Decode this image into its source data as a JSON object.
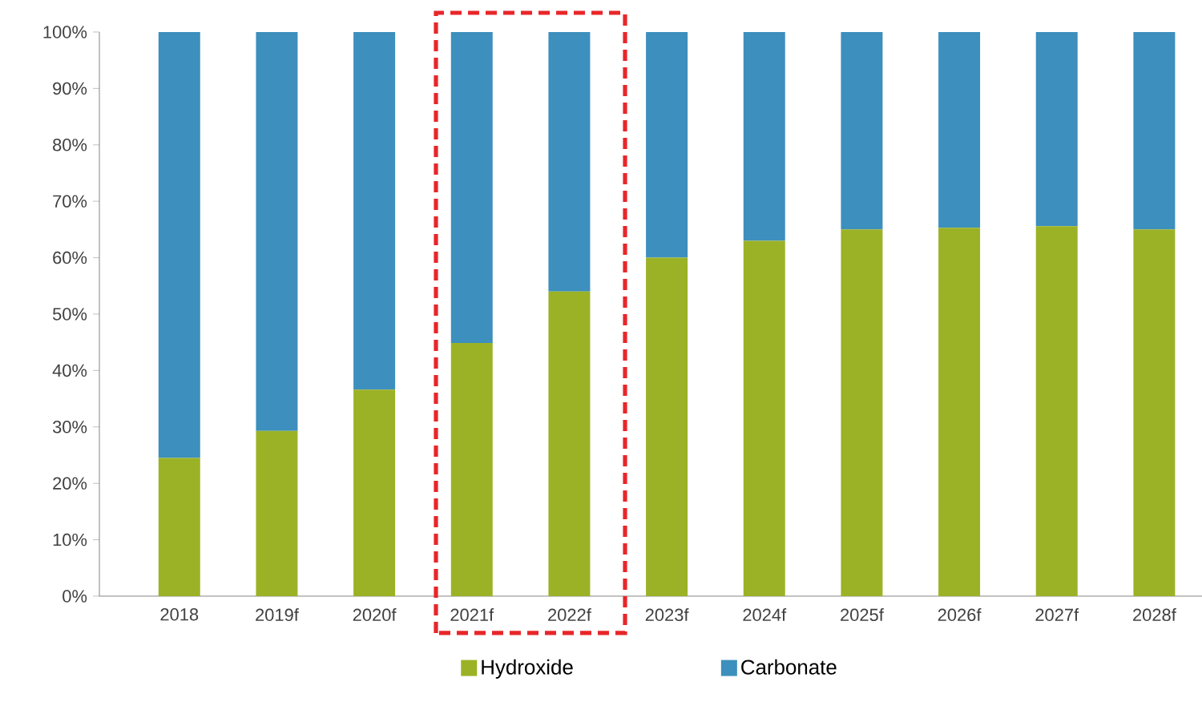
{
  "chart_data": {
    "type": "bar",
    "stacked": true,
    "legend": "bottom",
    "categories": [
      "2018",
      "2019f",
      "2020f",
      "2021f",
      "2022f",
      "2023f",
      "2024f",
      "2025f",
      "2026f",
      "2027f",
      "2028f"
    ],
    "series": [
      {
        "name": "Hydroxide",
        "color": "#9bb227",
        "values": [
          24.5,
          29.3,
          36.6,
          44.9,
          54,
          60,
          63,
          65,
          65.3,
          65.6,
          65
        ]
      },
      {
        "name": "Carbonate",
        "color": "#3d8fbd",
        "values": [
          75.5,
          70.7,
          63.4,
          55.1,
          46,
          40,
          37,
          35,
          34.7,
          34.4,
          35
        ]
      }
    ],
    "ylim": [
      0,
      100
    ],
    "yticks": [
      {
        "value": 0,
        "label": "0%"
      },
      {
        "value": 10,
        "label": "10%"
      },
      {
        "value": 20,
        "label": "20%"
      },
      {
        "value": 30,
        "label": "30%"
      },
      {
        "value": 40,
        "label": "40%"
      },
      {
        "value": 50,
        "label": "50%"
      },
      {
        "value": 60,
        "label": "60%"
      },
      {
        "value": 70,
        "label": "70%"
      },
      {
        "value": 80,
        "label": "80%"
      },
      {
        "value": 90,
        "label": "90%"
      },
      {
        "value": 100,
        "label": "100%"
      }
    ]
  }
}
